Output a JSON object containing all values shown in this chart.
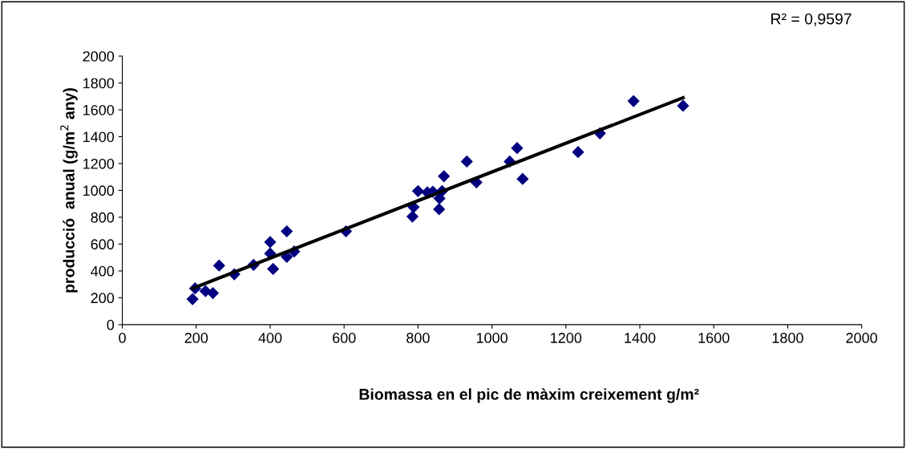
{
  "chart_data": {
    "type": "scatter",
    "xlabel": "Biomassa en el pic de màxim creixement g/m²",
    "ylabel": "producció  anual (g/m$^{2}$ any)",
    "annotations": [
      "R² = 0,9597"
    ],
    "series": [
      {
        "marker": "diamond",
        "color": "#000080",
        "x": [
          190,
          197,
          225,
          245,
          262,
          303,
          355,
          400,
          400,
          408,
          445,
          445,
          465,
          605,
          785,
          788,
          800,
          825,
          840,
          857,
          858,
          865,
          870,
          932,
          958,
          1048,
          1068,
          1083,
          1233,
          1292,
          1383,
          1517
        ],
        "values": [
          190,
          270,
          250,
          235,
          440,
          375,
          445,
          615,
          530,
          415,
          505,
          695,
          545,
          695,
          805,
          875,
          995,
          985,
          990,
          860,
          940,
          995,
          1105,
          1215,
          1060,
          1215,
          1315,
          1085,
          1285,
          1425,
          1665,
          1630
        ]
      },
      {
        "type": "line",
        "marker": "none",
        "color": "#000000",
        "x": [
          190,
          1517
        ],
        "values": [
          270,
          1690
        ]
      }
    ],
    "xlim": [
      0,
      2000
    ],
    "xticks": [
      0,
      200,
      400,
      600,
      800,
      1000,
      1200,
      1400,
      1600,
      1800,
      2000
    ],
    "ylim": [
      0,
      2000
    ],
    "yticks": [
      0,
      200,
      400,
      600,
      800,
      1000,
      1200,
      1400,
      1600,
      1800,
      2000
    ],
    "grid": false,
    "legend": false
  }
}
